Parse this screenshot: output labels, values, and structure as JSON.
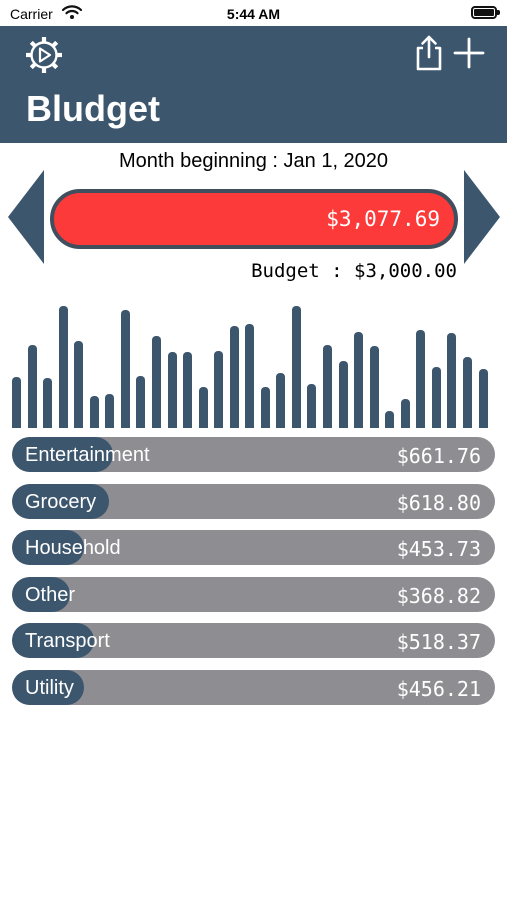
{
  "status_bar": {
    "carrier": "Carrier",
    "time": "5:44 AM"
  },
  "nav": {
    "title": "Bludget",
    "icons": [
      "gear-play-icon",
      "share-icon",
      "plus-icon"
    ]
  },
  "period": {
    "month_label": "Month beginning : Jan 1, 2020"
  },
  "spending": {
    "total": "$3,077.69",
    "budget_label": "Budget : $3,000.00",
    "over_budget_color": "#fc3a39"
  },
  "colors": {
    "primary": "#3c566e",
    "track": "#8e8d92"
  },
  "daily_spend_bars": [
    0.42,
    0.68,
    0.41,
    1.0,
    0.71,
    0.26,
    0.28,
    0.97,
    0.43,
    0.75,
    0.62,
    0.62,
    0.34,
    0.63,
    0.84,
    0.85,
    0.34,
    0.45,
    1.0,
    0.36,
    0.68,
    0.55,
    0.79,
    0.67,
    0.14,
    0.24,
    0.8,
    0.5,
    0.78,
    0.58,
    0.48
  ],
  "categories": [
    {
      "name": "Entertainment",
      "amount": "$661.76",
      "share": 0.21
    },
    {
      "name": "Grocery",
      "amount": "$618.80",
      "share": 0.2
    },
    {
      "name": "Household",
      "amount": "$453.73",
      "share": 0.15
    },
    {
      "name": "Other",
      "amount": "$368.82",
      "share": 0.12
    },
    {
      "name": "Transport",
      "amount": "$518.37",
      "share": 0.17
    },
    {
      "name": "Utility",
      "amount": "$456.21",
      "share": 0.15
    }
  ]
}
